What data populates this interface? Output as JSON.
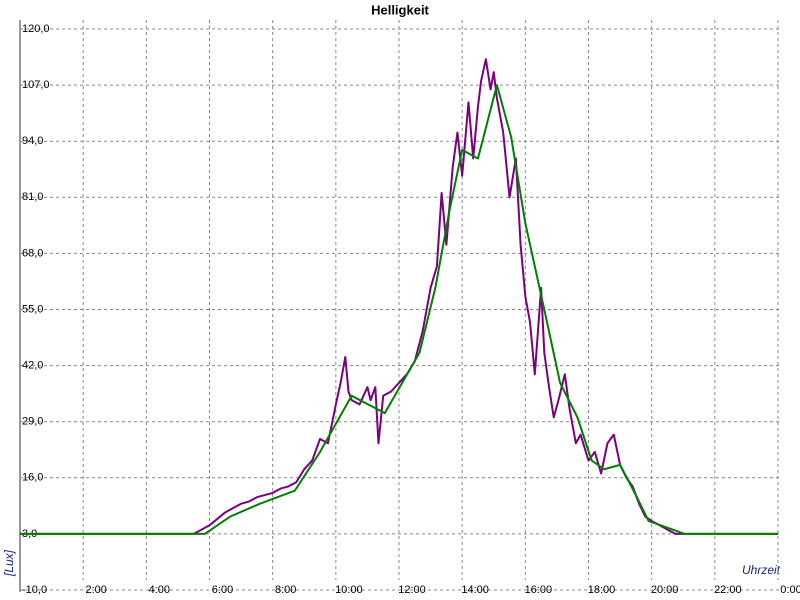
{
  "chart_data": {
    "type": "line",
    "title": "Helligkeit",
    "x_label": "Uhrzeit",
    "y_label": "[Lux]",
    "xlim": [
      0,
      24
    ],
    "ylim": [
      -10,
      120
    ],
    "grid": true,
    "xticks": [
      {
        "value": 2,
        "label": "2:00"
      },
      {
        "value": 4,
        "label": "4:00"
      },
      {
        "value": 6,
        "label": "6:00"
      },
      {
        "value": 8,
        "label": "8:00"
      },
      {
        "value": 10,
        "label": "10:00"
      },
      {
        "value": 12,
        "label": "12:00"
      },
      {
        "value": 14,
        "label": "14:00"
      },
      {
        "value": 16,
        "label": "16:00"
      },
      {
        "value": 18,
        "label": "18:00"
      },
      {
        "value": 20,
        "label": "20:00"
      },
      {
        "value": 22,
        "label": "22:00"
      },
      {
        "value": 24,
        "label": "0:00"
      }
    ],
    "yticks": [
      {
        "value": -10,
        "label": "-10,0"
      },
      {
        "value": 3,
        "label": "3,0"
      },
      {
        "value": 16,
        "label": "16,0"
      },
      {
        "value": 29,
        "label": "29,0"
      },
      {
        "value": 42,
        "label": "42,0"
      },
      {
        "value": 55,
        "label": "55,0"
      },
      {
        "value": 68,
        "label": "68,0"
      },
      {
        "value": 81,
        "label": "81,0"
      },
      {
        "value": 94,
        "label": "94,0"
      },
      {
        "value": 107,
        "label": "107,0"
      },
      {
        "value": 120,
        "label": "120,0"
      }
    ],
    "series": [
      {
        "color": "#7b007b",
        "x": [
          0,
          5.5,
          5.75,
          6,
          6.25,
          6.5,
          6.75,
          7,
          7.25,
          7.5,
          7.75,
          8,
          8.25,
          8.5,
          8.75,
          9,
          9.25,
          9.5,
          9.75,
          10,
          10.15,
          10.3,
          10.4,
          10.5,
          10.75,
          11,
          11.1,
          11.25,
          11.35,
          11.5,
          11.75,
          12,
          12.25,
          12.5,
          12.75,
          13,
          13.2,
          13.35,
          13.5,
          13.7,
          13.85,
          14,
          14.2,
          14.35,
          14.5,
          14.6,
          14.75,
          14.9,
          15,
          15.1,
          15.3,
          15.5,
          15.7,
          15.85,
          16,
          16.15,
          16.3,
          16.5,
          16.6,
          16.75,
          16.9,
          17.05,
          17.25,
          17.4,
          17.6,
          17.75,
          18,
          18.2,
          18.4,
          18.6,
          18.8,
          19,
          19.2,
          19.4,
          19.6,
          19.8,
          20,
          20.25,
          20.5,
          20.75,
          21,
          24
        ],
        "values": [
          3,
          3,
          4,
          5,
          6.5,
          8,
          9,
          10,
          10.5,
          11.5,
          12,
          12.5,
          13.5,
          14,
          15,
          18,
          20,
          25,
          24,
          33,
          38,
          44,
          36,
          34,
          33,
          37,
          34,
          37,
          24,
          35,
          36,
          38,
          40,
          43,
          50,
          60,
          65,
          82,
          70,
          88,
          96,
          86,
          103,
          90,
          102,
          108,
          113,
          106,
          110,
          104,
          96,
          81,
          90,
          70,
          58,
          52,
          40,
          60,
          45,
          37,
          30,
          34,
          40,
          32,
          24,
          26,
          20,
          22,
          17,
          24,
          26,
          19,
          16,
          14,
          10,
          7,
          6,
          5,
          4,
          3,
          3,
          3
        ]
      },
      {
        "color": "#008000",
        "x": [
          0,
          5.85,
          6.65,
          7.6,
          8.7,
          9.5,
          10.5,
          11.55,
          12.65,
          13.15,
          13.6,
          14,
          14.5,
          15.1,
          15.55,
          16,
          16.6,
          17.1,
          17.65,
          18.1,
          18.5,
          19,
          19.5,
          19.9,
          21.05,
          24
        ],
        "values": [
          3,
          3,
          7,
          10,
          13,
          22,
          35,
          31,
          45,
          60,
          78,
          92,
          90,
          107,
          95,
          75,
          55,
          38,
          30,
          20,
          18,
          19,
          12,
          6,
          3,
          3
        ]
      }
    ]
  }
}
